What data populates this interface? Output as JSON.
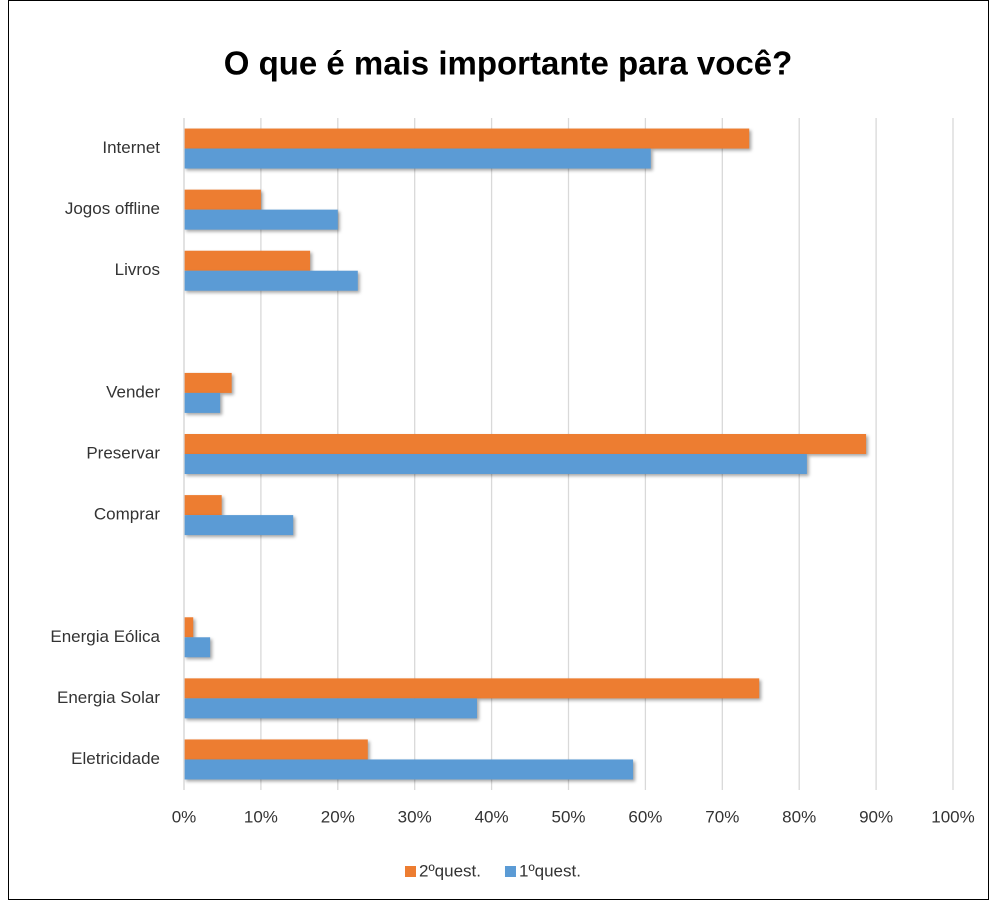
{
  "chart_data": {
    "type": "bar",
    "orientation": "horizontal",
    "title": "O que é mais importante para você?",
    "categories": [
      "Internet",
      "Jogos offline",
      "Livros",
      null,
      "Vender",
      "Preservar",
      "Comprar",
      null,
      "Energia Eólica",
      "Energia Solar ",
      "Eletricidade"
    ],
    "series": [
      {
        "name": "2ºquest.",
        "color": "#ed7d31",
        "values": [
          73.5,
          10,
          16.4,
          null,
          6.2,
          88.7,
          4.9,
          null,
          1.2,
          74.8,
          23.9
        ]
      },
      {
        "name": "1ºquest.",
        "color": "#5b9bd5",
        "values": [
          60.7,
          20,
          22.6,
          null,
          4.7,
          81,
          14.2,
          null,
          3.4,
          38.1,
          58.4
        ]
      }
    ],
    "xlim": [
      0,
      100
    ],
    "xticks": [
      {
        "value": 0,
        "label": "0%"
      },
      {
        "value": 10,
        "label": "10%"
      },
      {
        "value": 20,
        "label": "20%"
      },
      {
        "value": 30,
        "label": "30%"
      },
      {
        "value": 40,
        "label": "40%"
      },
      {
        "value": 50,
        "label": "50%"
      },
      {
        "value": 60,
        "label": "60%"
      },
      {
        "value": 70,
        "label": "70%"
      },
      {
        "value": 80,
        "label": "80%"
      },
      {
        "value": 90,
        "label": "90%"
      },
      {
        "value": 100,
        "label": "100%"
      }
    ],
    "grid": true,
    "legend": "bottom"
  }
}
